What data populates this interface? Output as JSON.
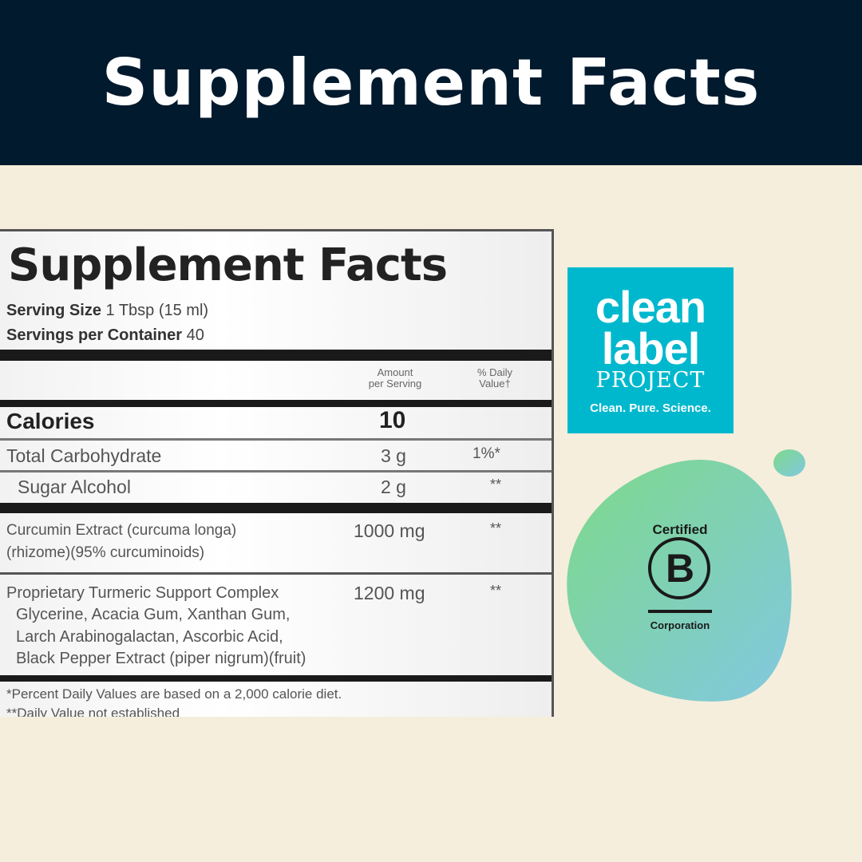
{
  "header": {
    "title": "Supplement Facts"
  },
  "label": {
    "title": "Supplement Facts",
    "serving_size_label": "Serving Size",
    "serving_size_value": "1 Tbsp (15 ml)",
    "servings_label": "Servings per Container",
    "servings_value": "40",
    "col_amount": [
      "Amount",
      "per Serving"
    ],
    "col_dv": [
      "% Daily",
      "Value†"
    ],
    "rows": [
      {
        "name": "Calories",
        "amount": "10",
        "dv": ""
      },
      {
        "name": "Total Carbohydrate",
        "amount": "3 g",
        "dv": "1%*"
      },
      {
        "name": "Sugar Alcohol",
        "amount": "2 g",
        "dv": "**"
      },
      {
        "name": "Curcumin Extract (curcuma longa)",
        "name2": "(rhizome)(95% curcuminoids)",
        "amount": "1000 mg",
        "dv": "**"
      },
      {
        "name": "Proprietary Turmeric Support Complex",
        "lines": [
          "Glycerine, Acacia Gum, Xanthan Gum,",
          "Larch Arabinogalactan, Ascorbic Acid,",
          "Black Pepper Extract (piper nigrum)(fruit)"
        ],
        "amount": "1200 mg",
        "dv": "**"
      }
    ],
    "footnotes": [
      "*Percent Daily Values are based on a 2,000 calorie diet.",
      "**Daily Value not established"
    ]
  },
  "clean_label": {
    "line1": "clean",
    "line2": "label",
    "line3": "PROJECT",
    "tagline": "Clean. Pure. Science.",
    "color": "#00b8cd"
  },
  "bcorp": {
    "top": "Certified",
    "letter": "B",
    "bottom": "Corporation",
    "gradient": [
      "#7dd98a",
      "#82c8e0"
    ]
  }
}
